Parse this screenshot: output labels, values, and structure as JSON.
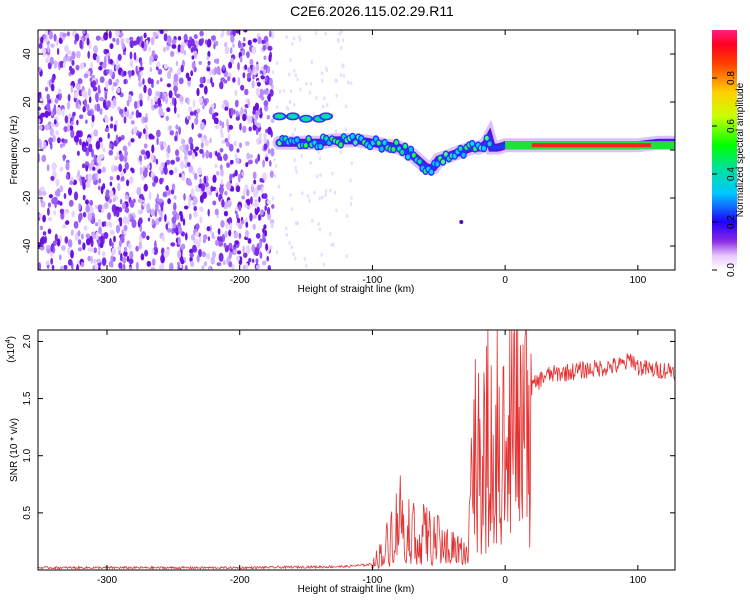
{
  "title": "C2E6.2026.115.02.29.R11",
  "chart_data": [
    {
      "type": "heatmap",
      "name": "spectrogram",
      "xlabel": "Height of straight line (km)",
      "ylabel": "Frequency (Hz)",
      "xlim": [
        -352,
        128
      ],
      "ylim": [
        -50,
        50
      ],
      "xticks": [
        -300,
        -200,
        -100,
        0,
        100
      ],
      "xtick_labels": [
        "-300",
        "-200",
        "-100",
        "0",
        "100"
      ],
      "yticks": [
        -40,
        -20,
        0,
        20,
        40
      ],
      "ytick_labels": [
        "-40",
        "-20",
        "0",
        "20",
        "40"
      ],
      "noise_region_end_km": -175,
      "signal_track": {
        "x": [
          -170,
          -160,
          -150,
          -140,
          -130,
          -120,
          -110,
          -100,
          -90,
          -80,
          -70,
          -60,
          -55,
          -50,
          -45,
          -40,
          -35,
          -30,
          -25,
          -20,
          -15,
          -12,
          -10,
          -5,
          0,
          20,
          40,
          60,
          80,
          100,
          115,
          128
        ],
        "y": [
          3,
          3,
          3,
          3,
          4,
          4,
          4,
          3,
          2,
          1,
          -2,
          -7,
          -8,
          -4,
          -3,
          -2,
          -1,
          0,
          1,
          1,
          2,
          5,
          1,
          1,
          2,
          2,
          2,
          2,
          2,
          2,
          3,
          3
        ]
      },
      "upper_branch": {
        "x": [
          -170,
          -160,
          -150,
          -140,
          -135
        ],
        "y": [
          14,
          14,
          13,
          13,
          14
        ]
      },
      "colorbar": {
        "label": "Normalized spectral amplitude",
        "range": [
          0,
          1
        ],
        "ticks": [
          0.0,
          0.2,
          0.4,
          0.6,
          0.8
        ],
        "tick_labels": [
          "0.0",
          "0.2",
          "0.4",
          "0.6",
          "0.8"
        ]
      }
    },
    {
      "type": "line",
      "name": "snr",
      "xlabel": "Height of straight line (km)",
      "ylabel": "SNR (10 * v/v)",
      "scale_label": "(x10^4)",
      "scale_base": "(x10",
      "scale_exp": "4",
      "xlim": [
        -352,
        128
      ],
      "ylim": [
        0,
        2.1
      ],
      "xticks": [
        -300,
        -200,
        -100,
        0,
        100
      ],
      "xtick_labels": [
        "-300",
        "-200",
        "-100",
        "0",
        "100"
      ],
      "yticks": [
        0.5,
        1.0,
        1.5,
        2.0
      ],
      "ytick_labels": [
        "0.5",
        "1.0",
        "1.5",
        "2.0"
      ],
      "color": "#e53030",
      "series": [
        {
          "name": "SNR envelope",
          "x": [
            -352,
            -200,
            -120,
            -100,
            -90,
            -80,
            -70,
            -60,
            -50,
            -40,
            -30,
            -25,
            -20,
            -15,
            -10,
            -5,
            0,
            5,
            10,
            20,
            30,
            40,
            60,
            80,
            90,
            95,
            100,
            110,
            128
          ],
          "y": [
            0.02,
            0.02,
            0.03,
            0.05,
            0.2,
            0.5,
            0.35,
            0.3,
            0.25,
            0.2,
            0.15,
            0.9,
            1.2,
            1.0,
            1.3,
            1.1,
            1.0,
            1.3,
            1.45,
            1.6,
            1.7,
            1.72,
            1.75,
            1.78,
            1.8,
            1.85,
            1.78,
            1.75,
            1.75
          ]
        }
      ]
    }
  ]
}
